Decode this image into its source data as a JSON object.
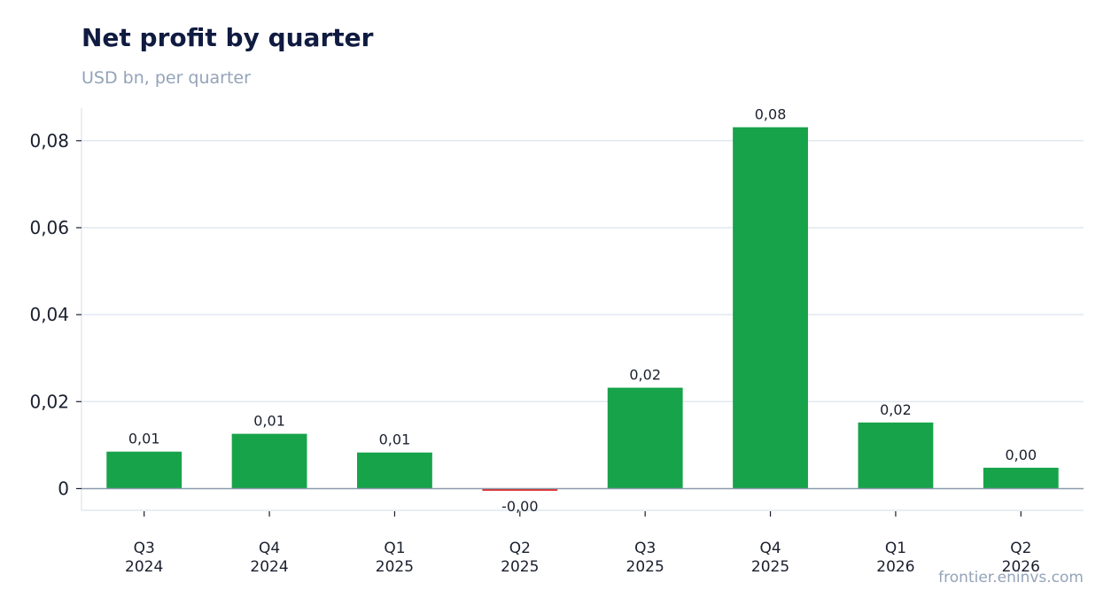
{
  "header": {
    "title": "Net profit by quarter",
    "subtitle": "USD bn, per quarter"
  },
  "footer": {
    "source": "frontier.eninvs.com"
  },
  "colors": {
    "positive": "#17a34a",
    "negative": "#dc2626",
    "grid": "#e2e8f0",
    "zero_line": "#8c9aab",
    "axis": "#e2e8f0"
  },
  "chart_data": {
    "type": "bar",
    "title": "Net profit by quarter",
    "subtitle": "USD bn, per quarter",
    "categories": [
      [
        "Q3",
        "2024"
      ],
      [
        "Q4",
        "2024"
      ],
      [
        "Q1",
        "2025"
      ],
      [
        "Q2",
        "2025"
      ],
      [
        "Q3",
        "2025"
      ],
      [
        "Q4",
        "2025"
      ],
      [
        "Q1",
        "2026"
      ],
      [
        "Q2",
        "2026"
      ]
    ],
    "values": [
      0.0085,
      0.0126,
      0.0083,
      -0.0005,
      0.0232,
      0.0831,
      0.0152,
      0.0048
    ],
    "data_labels": [
      "0,01",
      "0,01",
      "0,01",
      "-0,00",
      "0,02",
      "0,08",
      "0,02",
      "0,00"
    ],
    "ylim": [
      -0.005,
      0.0875
    ],
    "yticks": [
      0,
      0.02,
      0.04,
      0.06,
      0.08
    ],
    "ytick_labels": [
      "0",
      "0,02",
      "0,04",
      "0,06",
      "0,08"
    ],
    "grid": true,
    "legend": "none"
  }
}
